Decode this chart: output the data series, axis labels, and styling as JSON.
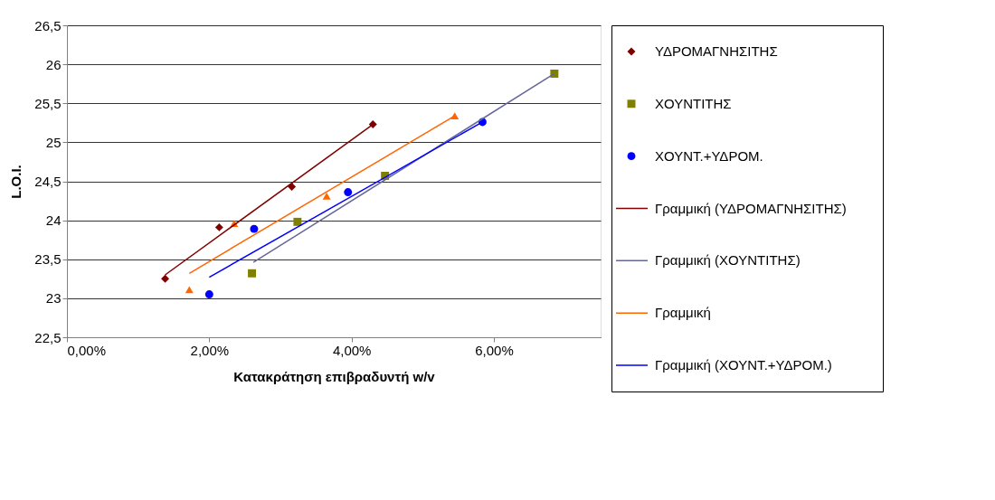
{
  "chart_data": {
    "type": "scatter",
    "xlabel": "Κατακράτηση επιβραδυντή w/v",
    "ylabel": "L.O.I.",
    "xlim": [
      0,
      0.075
    ],
    "xticks": [
      {
        "value": 0,
        "label": "0,00%"
      },
      {
        "value": 0.02,
        "label": "2,00%"
      },
      {
        "value": 0.04,
        "label": "4,00%"
      },
      {
        "value": 0.06,
        "label": "6,00%"
      }
    ],
    "ylim": [
      22.5,
      26.5
    ],
    "yticks": [
      {
        "value": 22.5,
        "label": "22,5"
      },
      23,
      {
        "value": 23.5,
        "label": "23,5"
      },
      24,
      {
        "value": 24.5,
        "label": "24,5"
      },
      25,
      {
        "value": 25.5,
        "label": "25,5"
      },
      26,
      {
        "value": 26.5,
        "label": "26,5"
      }
    ],
    "grid": "y",
    "legend": "right",
    "series": [
      {
        "name": "ΥΔΡΟΜΑΓΝΗΣΙΤΗΣ",
        "marker": "diamond",
        "color": "#800000",
        "x": [
          0.0138,
          0.0214,
          0.0316,
          0.043
        ],
        "values": [
          23.25,
          23.91,
          24.43,
          25.23
        ]
      },
      {
        "name": "ΧΟΥΝΤΙΤΗΣ",
        "marker": "square",
        "color": "#808000",
        "x": [
          0.026,
          0.0324,
          0.0447,
          0.0685
        ],
        "values": [
          23.32,
          23.98,
          24.57,
          25.88
        ]
      },
      {
        "marker": "triangle",
        "color": "#ff6600",
        "x": [
          0.0172,
          0.0235,
          0.0365,
          0.0545
        ],
        "values": [
          23.11,
          23.96,
          24.31,
          25.34
        ]
      },
      {
        "name": "ΧΟΥΝΤ.+ΥΔΡΟΜ.",
        "marker": "circle",
        "color": "#0000ff",
        "x": [
          0.02,
          0.0263,
          0.0395,
          0.0584
        ],
        "values": [
          23.05,
          23.89,
          24.36,
          25.26
        ]
      },
      {
        "name": "Γραμμική (ΥΔΡΟΜΑΓΝΗΣΙΤΗΣ)",
        "type": "line",
        "marker": "none",
        "color": "#800000",
        "x": [
          0.0138,
          0.043
        ],
        "values": [
          23.3,
          25.23
        ]
      },
      {
        "name": "Γραμμική (ΧΟΥΝΤΙΤΗΣ)",
        "type": "line",
        "marker": "none",
        "color": "#666699",
        "x": [
          0.0262,
          0.0685
        ],
        "values": [
          23.46,
          25.88
        ]
      },
      {
        "name": "Γραμμική",
        "type": "line",
        "marker": "none",
        "color": "#ff6600",
        "x": [
          0.0172,
          0.0545
        ],
        "values": [
          23.32,
          25.34
        ]
      },
      {
        "name": "Γραμμική (ΧΟΥΝΤ.+ΥΔΡΟΜ.)",
        "type": "line",
        "marker": "none",
        "color": "#0000ff",
        "x": [
          0.02,
          0.0584
        ],
        "values": [
          23.27,
          25.26
        ]
      }
    ]
  }
}
